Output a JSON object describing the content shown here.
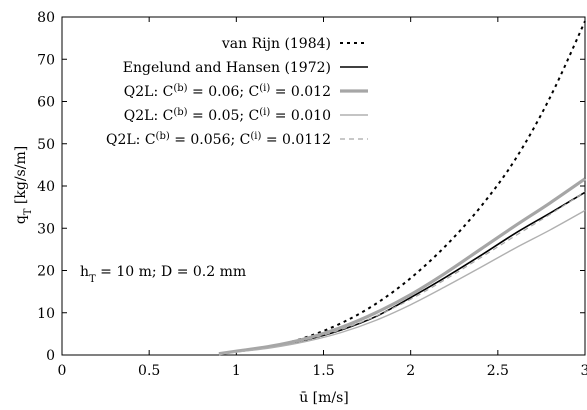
{
  "chart_data": {
    "type": "line",
    "xlabel": "ū [m/s]",
    "ylabel": "q_T [kg/s/m]",
    "xlim": [
      0,
      3
    ],
    "ylim": [
      0,
      80
    ],
    "xticks": [
      0,
      0.5,
      1,
      1.5,
      2,
      2.5,
      3
    ],
    "xtick_labels": [
      "0",
      "0.5",
      "1",
      "1.5",
      "2",
      "2.5",
      "3"
    ],
    "yticks": [
      0,
      10,
      20,
      30,
      40,
      50,
      60,
      70,
      80
    ],
    "ytick_labels": [
      "0",
      "10",
      "20",
      "30",
      "40",
      "50",
      "60",
      "70",
      "80"
    ],
    "legend_position": "top-center",
    "grid": false,
    "annotation": "h_T = 10 m; D = 0.2 mm",
    "series": [
      {
        "name": "van Rijn (1984)",
        "color": "#000000",
        "style": "dotted",
        "x": [
          1.0,
          1.2,
          1.4,
          1.6,
          1.8,
          2.0,
          2.2,
          2.4,
          2.6,
          2.8,
          3.0
        ],
        "y": [
          0.8,
          2.0,
          4.2,
          7.5,
          12.1,
          18.2,
          25.8,
          35.0,
          46.3,
          61.0,
          79.0
        ]
      },
      {
        "name": "Engelund and Hansen (1972)",
        "color": "#000000",
        "style": "solid",
        "x": [
          1.0,
          1.2,
          1.4,
          1.6,
          1.8,
          2.0,
          2.2,
          2.4,
          2.6,
          2.8,
          3.0
        ],
        "y": [
          1.0,
          2.0,
          3.6,
          5.9,
          9.1,
          13.6,
          18.4,
          23.5,
          28.8,
          33.6,
          38.5
        ]
      },
      {
        "name": "Q2L: C^(b) = 0.06; C^(i) = 0.012",
        "color": "#a6a6a6",
        "style": "thick",
        "x": [
          0.9,
          1.0,
          1.2,
          1.4,
          1.6,
          1.8,
          2.0,
          2.2,
          2.4,
          2.6,
          2.8,
          3.0
        ],
        "y": [
          0.3,
          0.9,
          2.1,
          3.9,
          6.5,
          10.0,
          14.3,
          19.4,
          25.0,
          30.6,
          36.0,
          41.7
        ]
      },
      {
        "name": "Q2L: C^(b) = 0.05; C^(i) = 0.010",
        "color": "#b0b0b0",
        "style": "solid",
        "x": [
          0.9,
          1.0,
          1.2,
          1.4,
          1.6,
          1.8,
          2.0,
          2.2,
          2.4,
          2.6,
          2.8,
          3.0
        ],
        "y": [
          0.2,
          0.7,
          1.7,
          3.2,
          5.3,
          8.2,
          11.9,
          16.2,
          20.7,
          25.3,
          29.6,
          34.2
        ]
      },
      {
        "name": "Q2L: C^(b) = 0.056; C^(i) = 0.0112",
        "color": "#a8a8a8",
        "style": "dashed",
        "x": [
          0.9,
          1.0,
          1.2,
          1.4,
          1.6,
          1.8,
          2.0,
          2.2,
          2.4,
          2.6,
          2.8,
          3.0
        ],
        "y": [
          0.25,
          0.8,
          1.9,
          3.6,
          6.0,
          9.2,
          13.2,
          17.9,
          23.0,
          28.2,
          33.3,
          38.6
        ]
      }
    ]
  }
}
